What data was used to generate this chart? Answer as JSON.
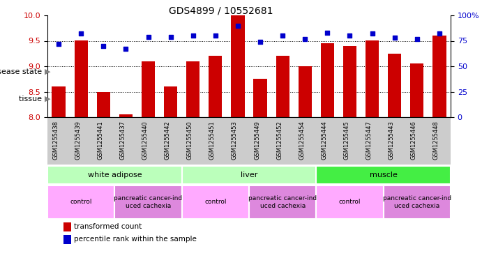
{
  "title": "GDS4899 / 10552681",
  "samples": [
    "GSM1255438",
    "GSM1255439",
    "GSM1255441",
    "GSM1255437",
    "GSM1255440",
    "GSM1255442",
    "GSM1255450",
    "GSM1255451",
    "GSM1255453",
    "GSM1255449",
    "GSM1255452",
    "GSM1255454",
    "GSM1255444",
    "GSM1255445",
    "GSM1255447",
    "GSM1255443",
    "GSM1255446",
    "GSM1255448"
  ],
  "bar_values": [
    8.6,
    9.5,
    8.5,
    8.05,
    9.1,
    8.6,
    9.1,
    9.2,
    10.0,
    8.75,
    9.2,
    9.0,
    9.45,
    9.4,
    9.5,
    9.25,
    9.05,
    9.6
  ],
  "scatter_values": [
    72,
    82,
    70,
    67,
    79,
    79,
    80,
    80,
    90,
    74,
    80,
    77,
    83,
    80,
    82,
    78,
    77,
    82
  ],
  "bar_color": "#cc0000",
  "scatter_color": "#0000cc",
  "ylim_left": [
    8,
    10
  ],
  "ylim_right": [
    0,
    100
  ],
  "yticks_left": [
    8,
    8.5,
    9,
    9.5,
    10
  ],
  "yticks_right": [
    0,
    25,
    50,
    75,
    100
  ],
  "tissue_groups": [
    {
      "label": "white adipose",
      "start": 0,
      "end": 6,
      "color": "#bbffbb"
    },
    {
      "label": "liver",
      "start": 6,
      "end": 12,
      "color": "#bbffbb"
    },
    {
      "label": "muscle",
      "start": 12,
      "end": 18,
      "color": "#44ee44"
    }
  ],
  "disease_groups": [
    {
      "label": "control",
      "start": 0,
      "end": 3,
      "color": "#ffaaff"
    },
    {
      "label": "pancreatic cancer-ind\nuced cachexia",
      "start": 3,
      "end": 6,
      "color": "#ee88ee"
    },
    {
      "label": "control",
      "start": 6,
      "end": 9,
      "color": "#ffaaff"
    },
    {
      "label": "pancreatic cancer-ind\nuced cachexia",
      "start": 9,
      "end": 12,
      "color": "#ee88ee"
    },
    {
      "label": "control",
      "start": 12,
      "end": 15,
      "color": "#ffaaff"
    },
    {
      "label": "pancreatic cancer-ind\nuced cachexia",
      "start": 15,
      "end": 18,
      "color": "#ee88ee"
    }
  ],
  "legend_items": [
    {
      "label": "transformed count",
      "color": "#cc0000"
    },
    {
      "label": "percentile rank within the sample",
      "color": "#0000cc"
    }
  ],
  "xtick_bg_color": "#cccccc",
  "background_color": "#ffffff",
  "tick_label_color_left": "#cc0000",
  "tick_label_color_right": "#0000cc",
  "title_fontsize": 10,
  "bar_width": 0.6
}
